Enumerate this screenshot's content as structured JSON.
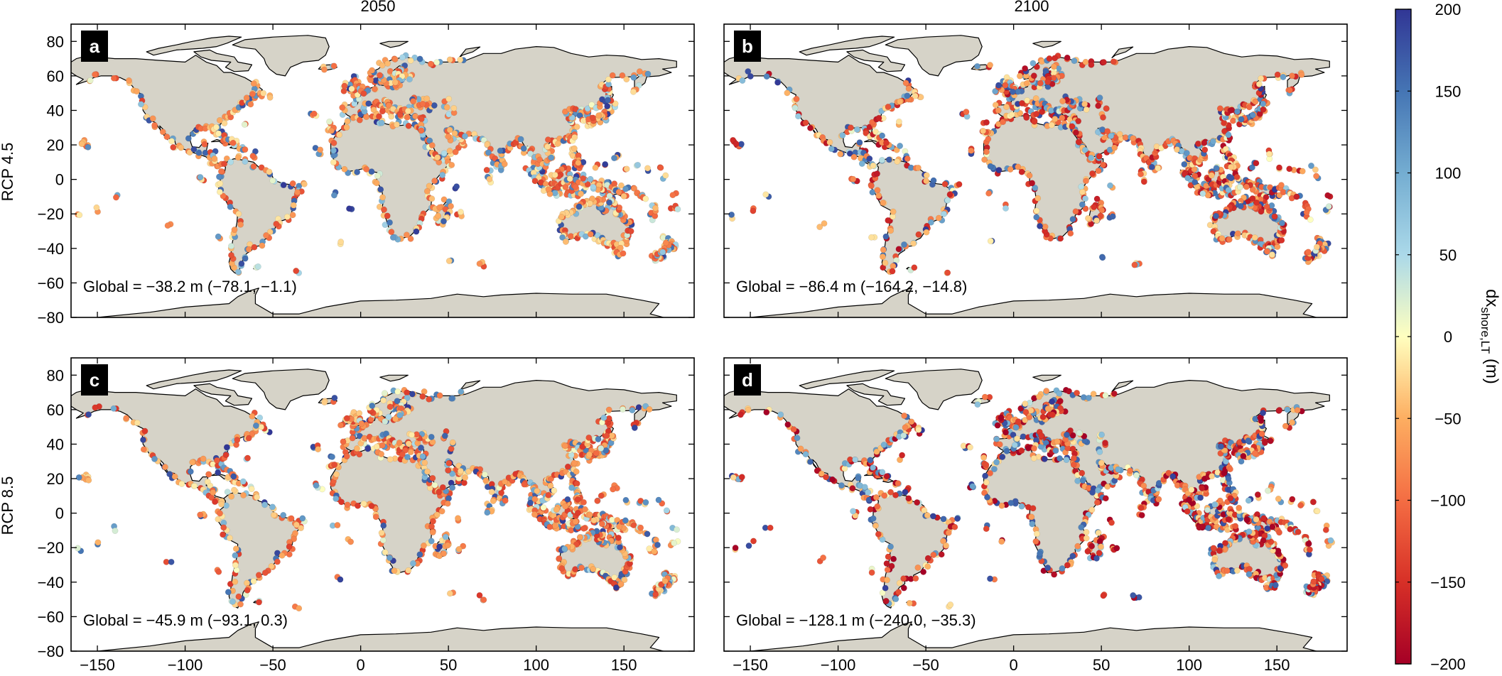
{
  "figure": {
    "col_titles": [
      "2050",
      "2100"
    ],
    "row_titles": [
      "RCP 4.5",
      "RCP 8.5"
    ],
    "panels": [
      {
        "letter": "a",
        "global_text": "Global = −38.2 m (−78.1, −1.1)",
        "severity": 0.35
      },
      {
        "letter": "b",
        "global_text": "Global = −86.4 m (−164.2, −14.8)",
        "severity": 0.62
      },
      {
        "letter": "c",
        "global_text": "Global = −45.9 m (−93.1, 0.3)",
        "severity": 0.4
      },
      {
        "letter": "d",
        "global_text": "Global = −128.1 m (−240.0, −35.3)",
        "severity": 0.8
      }
    ],
    "colorbar": {
      "label_main": "dx",
      "label_sub": "shore,LT",
      "label_unit": " (m)",
      "ticks": [
        "200",
        "150",
        "100",
        "50",
        "0",
        "−50",
        "−100",
        "−150",
        "−200"
      ],
      "values": [
        200,
        150,
        100,
        50,
        0,
        -50,
        -100,
        -150,
        -200
      ],
      "colors": [
        "#313695",
        "#4575b4",
        "#74add1",
        "#abd9e9",
        "#ffffbf",
        "#fdae61",
        "#f46d43",
        "#d73027",
        "#a50026"
      ]
    },
    "land_color": "#d6d3c8"
  },
  "chart_data": {
    "type": "scatter",
    "description_free": true,
    "xlim": [
      -165,
      190
    ],
    "ylim": [
      -80,
      90
    ],
    "x_ticks": [
      -150,
      -100,
      -50,
      0,
      50,
      100,
      150
    ],
    "y_ticks": [
      80,
      60,
      40,
      20,
      0,
      -20,
      -40,
      -60,
      -80
    ],
    "x_tick_labels": [
      "−150",
      "−100",
      "−50",
      "0",
      "50",
      "100",
      "150"
    ],
    "y_tick_labels": [
      "80",
      "60",
      "40",
      "20",
      "0",
      "−20",
      "−40",
      "−60",
      "−80"
    ],
    "color_range": [
      -200,
      200
    ],
    "panels": [
      {
        "id": "a",
        "global_mean": -38.2,
        "interval": [
          -78.1,
          -1.1
        ]
      },
      {
        "id": "b",
        "global_mean": -86.4,
        "interval": [
          -164.2,
          -14.8
        ]
      },
      {
        "id": "c",
        "global_mean": -45.9,
        "interval": [
          -93.1,
          0.3
        ]
      },
      {
        "id": "d",
        "global_mean": -128.1,
        "interval": [
          -240.0,
          -35.3
        ]
      }
    ]
  }
}
